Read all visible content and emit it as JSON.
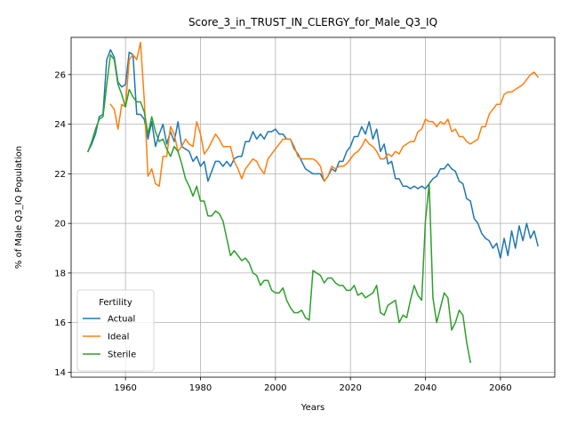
{
  "chart_data": {
    "type": "line",
    "title": "Score_3_in_TRUST_IN_CLERGY_for_Male_Q3_IQ",
    "xlabel": "Years",
    "ylabel": "% of Male Q3_IQ Population",
    "xlim": [
      1945.5,
      2074.5
    ],
    "ylim": [
      13.8,
      27.5
    ],
    "xticks": [
      1960,
      1980,
      2000,
      2020,
      2040,
      2060
    ],
    "yticks": [
      14,
      16,
      18,
      20,
      22,
      24,
      26
    ],
    "grid": true,
    "legend": {
      "title": "Fertility",
      "placement": "bottom-left"
    },
    "series": [
      {
        "name": "Actual",
        "color": "#1f77b4",
        "x": [
          1950,
          1951,
          1952,
          1953,
          1954,
          1955,
          1956,
          1957,
          1958,
          1959,
          1960,
          1961,
          1962,
          1963,
          1964,
          1965,
          1966,
          1967,
          1968,
          1969,
          1970,
          1971,
          1972,
          1973,
          1974,
          1975,
          1976,
          1977,
          1978,
          1979,
          1980,
          1981,
          1982,
          1983,
          1984,
          1985,
          1986,
          1987,
          1988,
          1989,
          1990,
          1991,
          1992,
          1993,
          1994,
          1995,
          1996,
          1997,
          1998,
          1999,
          2000,
          2001,
          2002,
          2003,
          2004,
          2005,
          2006,
          2007,
          2008,
          2009,
          2010,
          2011,
          2012,
          2013,
          2014,
          2015,
          2016,
          2017,
          2018,
          2019,
          2020,
          2021,
          2022,
          2023,
          2024,
          2025,
          2026,
          2027,
          2028,
          2029,
          2030,
          2031,
          2032,
          2033,
          2034,
          2035,
          2036,
          2037,
          2038,
          2039,
          2040,
          2041,
          2042,
          2043,
          2044,
          2045,
          2046,
          2047,
          2048,
          2049,
          2050,
          2051,
          2052,
          2053,
          2054,
          2055,
          2056,
          2057,
          2058,
          2059,
          2060,
          2061,
          2062,
          2063,
          2064,
          2065,
          2066,
          2067,
          2068,
          2069,
          2070
        ],
        "values": [
          22.9,
          23.2,
          23.6,
          24.3,
          24.4,
          26.6,
          27.0,
          26.7,
          25.7,
          25.5,
          25.6,
          26.9,
          26.8,
          24.4,
          24.4,
          24.2,
          23.4,
          24.1,
          23.1,
          23.6,
          24.0,
          23.2,
          23.7,
          23.3,
          24.1,
          23.1,
          23.0,
          22.9,
          22.5,
          22.7,
          22.3,
          22.5,
          21.7,
          22.1,
          22.5,
          22.5,
          22.3,
          22.5,
          22.3,
          22.6,
          22.7,
          22.7,
          23.3,
          23.3,
          23.7,
          23.4,
          23.6,
          23.4,
          23.7,
          23.7,
          23.8,
          23.6,
          23.6,
          23.4,
          23.4,
          23.0,
          22.8,
          22.5,
          22.2,
          22.1,
          22.0,
          22.0,
          22.0,
          21.7,
          21.9,
          22.2,
          22.1,
          22.5,
          22.5,
          22.9,
          23.1,
          23.5,
          23.5,
          23.9,
          23.6,
          24.1,
          23.4,
          23.8,
          22.9,
          23.2,
          22.4,
          22.5,
          21.8,
          21.8,
          21.5,
          21.5,
          21.4,
          21.5,
          21.4,
          21.5,
          21.4,
          21.6,
          21.8,
          21.9,
          22.2,
          22.2,
          22.4,
          22.2,
          22.1,
          21.7,
          21.6,
          21.0,
          20.9,
          20.2,
          20.0,
          19.6,
          19.4,
          19.3,
          19.0,
          19.2,
          18.6,
          19.4,
          18.7,
          19.7,
          19.0,
          19.9,
          19.3,
          20.0,
          19.4,
          19.7,
          19.1
        ]
      },
      {
        "name": "Ideal",
        "color": "#ff7f0e",
        "x": [
          1956,
          1957,
          1958,
          1959,
          1960,
          1961,
          1962,
          1963,
          1964,
          1965,
          1966,
          1967,
          1968,
          1969,
          1970,
          1971,
          1972,
          1973,
          1974,
          1975,
          1976,
          1977,
          1978,
          1979,
          1980,
          1981,
          1982,
          1983,
          1984,
          1985,
          1986,
          1987,
          1988,
          1989,
          1990,
          1991,
          1992,
          1993,
          1994,
          1995,
          1996,
          1997,
          1998,
          1999,
          2000,
          2001,
          2002,
          2003,
          2004,
          2005,
          2006,
          2007,
          2008,
          2009,
          2010,
          2011,
          2012,
          2013,
          2014,
          2015,
          2016,
          2017,
          2018,
          2019,
          2020,
          2021,
          2022,
          2023,
          2024,
          2025,
          2026,
          2027,
          2028,
          2029,
          2030,
          2031,
          2032,
          2033,
          2034,
          2035,
          2036,
          2037,
          2038,
          2039,
          2040,
          2041,
          2042,
          2043,
          2044,
          2045,
          2046,
          2047,
          2048,
          2049,
          2050,
          2051,
          2052,
          2053,
          2054,
          2055,
          2056,
          2057,
          2058,
          2059,
          2060,
          2061,
          2062,
          2063,
          2064,
          2065,
          2066,
          2067,
          2068,
          2069,
          2070
        ],
        "values": [
          24.8,
          24.6,
          23.8,
          24.8,
          24.7,
          26.6,
          26.8,
          26.6,
          27.3,
          25.0,
          21.9,
          22.2,
          21.6,
          21.5,
          22.7,
          22.7,
          23.9,
          23.6,
          22.9,
          23.1,
          23.4,
          23.2,
          23.1,
          24.1,
          23.6,
          22.8,
          23.0,
          23.3,
          23.6,
          23.4,
          23.1,
          23.1,
          23.1,
          22.5,
          22.2,
          21.8,
          22.2,
          22.4,
          22.6,
          22.5,
          22.2,
          22.0,
          22.6,
          22.8,
          23.0,
          23.2,
          23.4,
          23.4,
          23.4,
          23.1,
          22.7,
          22.6,
          22.6,
          22.6,
          22.6,
          22.5,
          22.3,
          21.7,
          21.9,
          22.3,
          22.2,
          22.3,
          22.3,
          22.4,
          22.6,
          22.8,
          22.9,
          23.1,
          23.4,
          23.2,
          23.1,
          22.9,
          22.6,
          22.6,
          22.8,
          22.7,
          22.9,
          22.8,
          23.1,
          23.2,
          23.3,
          23.3,
          23.7,
          23.8,
          24.2,
          24.1,
          24.1,
          23.9,
          24.1,
          24.0,
          24.2,
          23.7,
          23.8,
          23.5,
          23.5,
          23.3,
          23.2,
          23.3,
          23.4,
          23.9,
          23.9,
          24.4,
          24.6,
          24.8,
          24.8,
          25.2,
          25.3,
          25.3,
          25.4,
          25.5,
          25.6,
          25.8,
          26.0,
          26.1,
          25.9
        ]
      },
      {
        "name": "Sterile",
        "color": "#2ca02c",
        "x": [
          1950,
          1951,
          1952,
          1953,
          1954,
          1955,
          1956,
          1957,
          1958,
          1959,
          1960,
          1961,
          1962,
          1963,
          1964,
          1965,
          1966,
          1967,
          1968,
          1969,
          1970,
          1971,
          1972,
          1973,
          1974,
          1975,
          1976,
          1977,
          1978,
          1979,
          1980,
          1981,
          1982,
          1983,
          1984,
          1985,
          1986,
          1987,
          1988,
          1989,
          1990,
          1991,
          1992,
          1993,
          1994,
          1995,
          1996,
          1997,
          1998,
          1999,
          2000,
          2001,
          2002,
          2003,
          2004,
          2005,
          2006,
          2007,
          2008,
          2009,
          2010,
          2011,
          2012,
          2013,
          2014,
          2015,
          2016,
          2017,
          2018,
          2019,
          2020,
          2021,
          2022,
          2023,
          2024,
          2025,
          2026,
          2027,
          2028,
          2029,
          2030,
          2031,
          2032,
          2033,
          2034,
          2035,
          2036,
          2037,
          2038,
          2039,
          2040,
          2041,
          2042,
          2043,
          2044,
          2045,
          2046,
          2047,
          2048,
          2049,
          2050,
          2051,
          2052
        ],
        "values": [
          22.9,
          23.3,
          23.8,
          24.2,
          24.3,
          25.6,
          26.8,
          26.6,
          25.6,
          25.2,
          24.7,
          25.4,
          25.1,
          24.9,
          24.9,
          24.5,
          23.6,
          24.3,
          23.7,
          23.3,
          23.4,
          23.0,
          22.7,
          23.1,
          22.9,
          22.4,
          21.8,
          21.5,
          21.1,
          21.5,
          20.9,
          20.9,
          20.3,
          20.3,
          20.5,
          20.4,
          20.1,
          19.4,
          18.7,
          18.9,
          18.7,
          18.5,
          18.6,
          18.4,
          18.0,
          17.9,
          17.5,
          17.7,
          17.7,
          17.3,
          17.2,
          17.2,
          17.4,
          16.9,
          16.6,
          16.4,
          16.4,
          16.5,
          16.2,
          16.1,
          18.1,
          18.0,
          17.9,
          17.6,
          17.8,
          17.8,
          17.6,
          17.5,
          17.5,
          17.3,
          17.3,
          17.5,
          17.1,
          17.2,
          17.0,
          17.1,
          17.2,
          17.5,
          16.4,
          16.3,
          16.7,
          16.8,
          16.9,
          16.0,
          16.3,
          16.2,
          16.9,
          17.5,
          17.1,
          16.9,
          20.1,
          21.6,
          17.0,
          16.0,
          16.6,
          17.2,
          17.0,
          15.7,
          16.0,
          16.5,
          16.3,
          15.2,
          14.4
        ]
      }
    ]
  }
}
